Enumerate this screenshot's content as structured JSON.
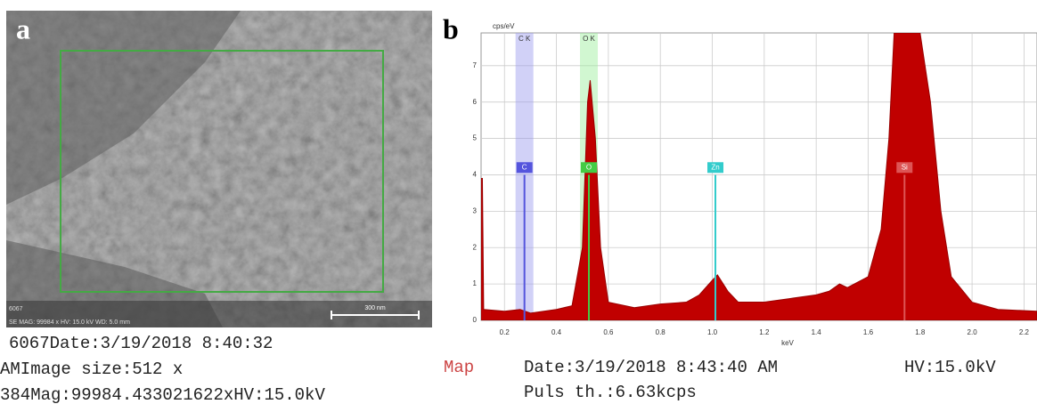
{
  "panel_a": {
    "label": "a",
    "image_id": "6067",
    "info_bar": "SE MAG: 99984 x   HV: 15.0 kV  WD: 5.0 mm",
    "scale_bar": "300 nm",
    "caption": [
      "6067Date:3/19/2018 8:40:32",
      "AMImage size:512 x",
      "384Mag:99984.433021622xHV:15.0kV"
    ]
  },
  "panel_b": {
    "label": "b",
    "caption_mode": "Map",
    "caption_date": "Date:3/19/2018 8:43:40 AM",
    "caption_hv": "HV:15.0kV",
    "caption_puls": "Puls th.:6.63kcps"
  },
  "chart_data": {
    "type": "area",
    "y_label": "cps/eV",
    "x_label": "keV",
    "color": "#c00000",
    "grid": true,
    "xlim": [
      0.11,
      2.25
    ],
    "ylim": [
      0,
      7.9
    ],
    "xticks": [
      {
        "value": 0.2,
        "label": "0.2"
      },
      {
        "value": 0.4,
        "label": "0.4"
      },
      {
        "value": 0.6,
        "label": "0.6"
      },
      {
        "value": 0.8,
        "label": "0.8"
      },
      {
        "value": 1.0,
        "label": "1.0"
      },
      {
        "value": 1.2,
        "label": "1.2"
      },
      {
        "value": 1.4,
        "label": "1.4"
      },
      {
        "value": 1.6,
        "label": "1.6"
      },
      {
        "value": 1.8,
        "label": "1.8"
      },
      {
        "value": 2.0,
        "label": "2.0"
      },
      {
        "value": 2.2,
        "label": "2.2"
      }
    ],
    "yticks": [
      0,
      1,
      2,
      3,
      4,
      5,
      6,
      7
    ],
    "x": [
      0.11,
      0.115,
      0.12,
      0.2,
      0.26,
      0.3,
      0.4,
      0.46,
      0.5,
      0.52,
      0.53,
      0.55,
      0.57,
      0.6,
      0.7,
      0.8,
      0.9,
      0.95,
      1.0,
      1.02,
      1.06,
      1.1,
      1.2,
      1.3,
      1.4,
      1.45,
      1.49,
      1.52,
      1.6,
      1.65,
      1.68,
      1.7,
      1.8,
      1.84,
      1.88,
      1.92,
      2.0,
      2.1,
      2.25
    ],
    "values": [
      3.9,
      3.9,
      0.3,
      0.25,
      0.3,
      0.2,
      0.3,
      0.4,
      2,
      6.0,
      6.6,
      5,
      2,
      0.5,
      0.35,
      0.45,
      0.5,
      0.7,
      1.1,
      1.25,
      0.8,
      0.5,
      0.5,
      0.6,
      0.7,
      0.8,
      1.0,
      0.9,
      1.2,
      2.5,
      5,
      7.9,
      7.9,
      6,
      3,
      1.2,
      0.5,
      0.3,
      0.25
    ],
    "bands": [
      {
        "label": "C K",
        "energy": 0.277,
        "color": "#9999ee"
      },
      {
        "label": "O K",
        "energy": 0.525,
        "color": "#99ee99"
      }
    ],
    "markers": [
      {
        "label": "C",
        "energy": 0.277,
        "color": "#5555dd"
      },
      {
        "label": "O",
        "energy": 0.525,
        "color": "#44cc44"
      },
      {
        "label": "Zn",
        "energy": 1.012,
        "color": "#33cccc"
      },
      {
        "label": "Si",
        "energy": 1.74,
        "color": "#dd5555"
      }
    ]
  }
}
